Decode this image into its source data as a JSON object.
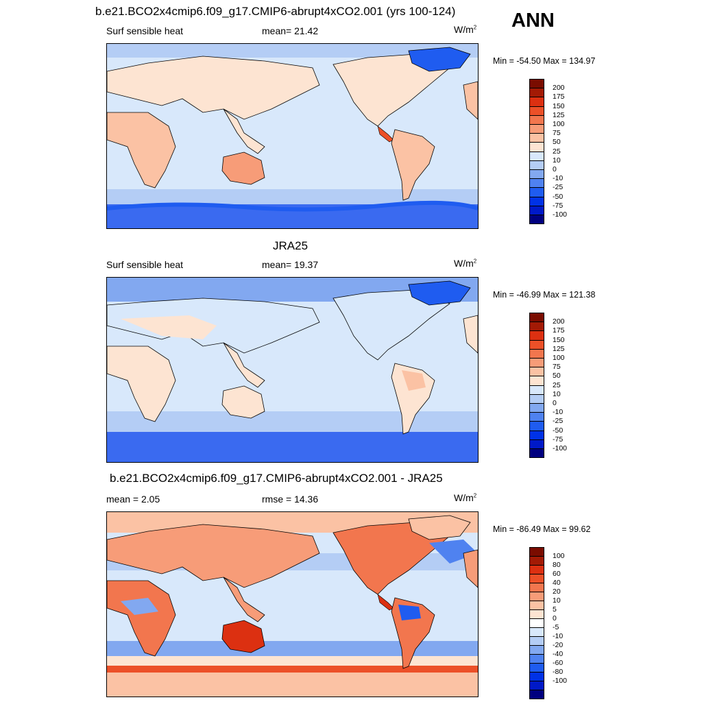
{
  "season": "ANN",
  "unit_text": "W/m",
  "unit_sup": "2",
  "colors": {
    "heat": [
      "#00007f",
      "#0019c8",
      "#0032e6",
      "#1f5cf0",
      "#4f82f0",
      "#82a8f0",
      "#b4cdf5",
      "#d8e8fb",
      "#fde4d2",
      "#fbc2a4",
      "#f79c78",
      "#f2764e",
      "#ec5028",
      "#dc3011",
      "#a31a05",
      "#7a0c00"
    ],
    "diff": [
      "#00007f",
      "#0019c8",
      "#0032e6",
      "#1f5cf0",
      "#4f82f0",
      "#82a8f0",
      "#b4cdf5",
      "#d8e8fb",
      "#ffffff",
      "#fde4d2",
      "#fbc2a4",
      "#f79c78",
      "#f2764e",
      "#ec5028",
      "#dc3011",
      "#a31a05",
      "#7a0c00"
    ]
  },
  "panels": [
    {
      "title": "b.e21.BCO2x4cmip6.f09_g17.CMIP6-abrupt4xCO2.001 (yrs 100-124)",
      "left_label": "Surf sensible heat",
      "center_label": "mean=  21.42",
      "minmax": "Min = -54.50 Max = 134.97",
      "colorbar_labels": [
        "200",
        "175",
        "150",
        "125",
        "100",
        "75",
        "50",
        "25",
        "10",
        "0",
        "-10",
        "-25",
        "-50",
        "-75",
        "-100"
      ]
    },
    {
      "title": "JRA25",
      "left_label": "Surf sensible heat",
      "center_label": "mean=  19.37",
      "minmax": "Min = -46.99 Max = 121.38",
      "colorbar_labels": [
        "200",
        "175",
        "150",
        "125",
        "100",
        "75",
        "50",
        "25",
        "10",
        "0",
        "-10",
        "-25",
        "-50",
        "-75",
        "-100"
      ]
    },
    {
      "title": "b.e21.BCO2x4cmip6.f09_g17.CMIP6-abrupt4xCO2.001 - JRA25",
      "left_label": "mean =   2.05",
      "center_label": "rmse =  14.36",
      "minmax": "Min = -86.49 Max =  99.62",
      "colorbar_labels": [
        "100",
        "80",
        "60",
        "40",
        "20",
        "10",
        "5",
        "0",
        "-5",
        "-10",
        "-20",
        "-40",
        "-60",
        "-80",
        "-100"
      ]
    }
  ]
}
